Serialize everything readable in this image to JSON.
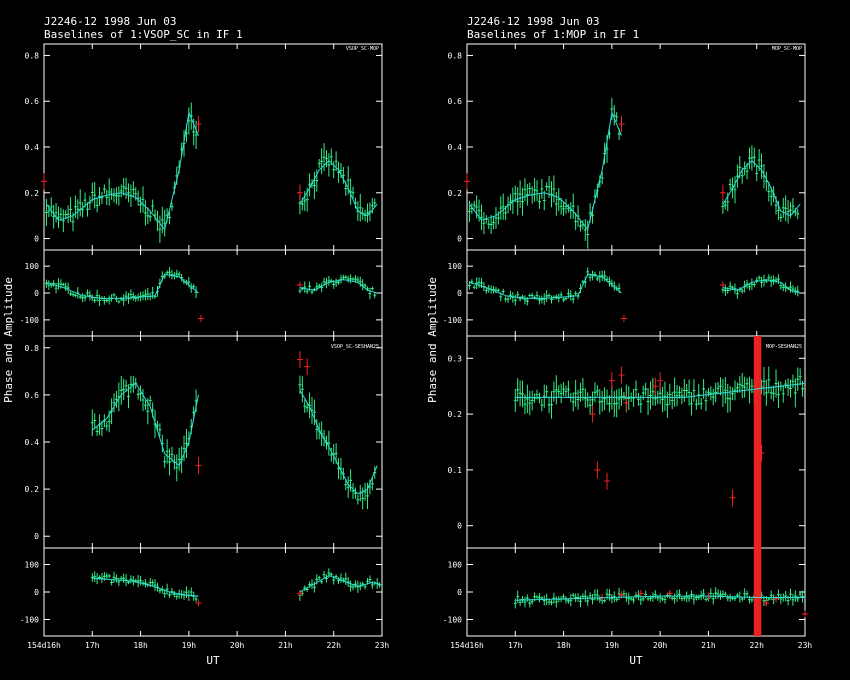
{
  "colors": {
    "background": "#000000",
    "axes": "#ffffff",
    "data": "#33ee88",
    "model": "#33dddd",
    "flagged": "#ee2222"
  },
  "shared": {
    "ylabel": "Phase and Amplitude",
    "xlabel": "UT",
    "x_ticks": [
      "154d16h",
      "17h",
      "18h",
      "19h",
      "20h",
      "21h",
      "22h",
      "23h"
    ]
  },
  "panels": [
    {
      "title1": "J2246-12  1998 Jun 03",
      "title2": "Baselines of 1:VSOP_SC in IF 1",
      "subplots": [
        {
          "label": "VSOP_SC-MOP",
          "kind": "amp",
          "yticks": [
            "0",
            "0.2",
            "0.4",
            "0.6",
            "0.8"
          ]
        },
        {
          "label": "",
          "kind": "phase",
          "yticks": [
            "-100",
            "0",
            "100"
          ]
        },
        {
          "label": "VSOP_SC-SESHAN25",
          "kind": "amp",
          "yticks": [
            "0",
            "0.2",
            "0.4",
            "0.6",
            "0.8"
          ]
        },
        {
          "label": "",
          "kind": "phase",
          "yticks": [
            "-100",
            "0",
            "100"
          ]
        }
      ]
    },
    {
      "title1": "J2246-12  1998 Jun 03",
      "title2": "Baselines of 1:MOP in IF 1",
      "subplots": [
        {
          "label": "MOP_SC-MOP",
          "kind": "amp",
          "yticks": [
            "0",
            "0.2",
            "0.4",
            "0.6",
            "0.8"
          ]
        },
        {
          "label": "",
          "kind": "phase",
          "yticks": [
            "-100",
            "0",
            "100"
          ]
        },
        {
          "label": "MOP-SESHAN25",
          "kind": "amp",
          "yticks": [
            "0",
            "0.1",
            "0.2",
            "0.3"
          ]
        },
        {
          "label": "",
          "kind": "phase",
          "yticks": [
            "-100",
            "0",
            "100"
          ]
        }
      ]
    }
  ],
  "chart_data": [
    {
      "type": "scatter",
      "title": "Baselines of 1:VSOP_SC in IF 1",
      "baseline": "VSOP_SC-MOP",
      "quantity": "amplitude",
      "xlim": [
        16,
        23
      ],
      "ylim": [
        -0.05,
        0.85
      ],
      "series": [
        {
          "name": "VSOP_SC-MOP",
          "segments": [
            {
              "x": [
                16.05,
                16.3,
                16.6,
                17.0,
                17.3,
                17.6,
                17.9,
                18.2,
                18.5,
                18.8,
                19.0,
                19.2
              ],
              "y": [
                0.15,
                0.08,
                0.1,
                0.17,
                0.19,
                0.2,
                0.18,
                0.12,
                0.04,
                0.3,
                0.55,
                0.45
              ]
            },
            {
              "x": [
                21.3,
                21.5,
                21.7,
                21.9,
                22.1,
                22.3,
                22.5,
                22.7,
                22.9
              ],
              "y": [
                0.15,
                0.22,
                0.3,
                0.34,
                0.3,
                0.22,
                0.12,
                0.1,
                0.15
              ]
            }
          ]
        }
      ],
      "flagged": [
        {
          "x": 16.0,
          "y": 0.25
        },
        {
          "x": 19.2,
          "y": 0.5
        },
        {
          "x": 21.3,
          "y": 0.2
        }
      ]
    },
    {
      "type": "scatter",
      "baseline": "VSOP_SC-MOP",
      "quantity": "phase",
      "xlim": [
        16,
        23
      ],
      "ylim": [
        -160,
        160
      ],
      "series": [
        {
          "name": "VSOP_SC-MOP",
          "segments": [
            {
              "x": [
                16.05,
                16.4,
                16.8,
                17.2,
                17.6,
                18.0,
                18.3,
                18.5,
                18.8,
                19.2
              ],
              "y": [
                40,
                20,
                -10,
                -20,
                -20,
                -15,
                -10,
                70,
                60,
                0
              ]
            },
            {
              "x": [
                21.3,
                21.6,
                21.9,
                22.2,
                22.5,
                22.7,
                22.9
              ],
              "y": [
                20,
                10,
                40,
                50,
                40,
                10,
                0
              ]
            }
          ]
        }
      ],
      "flagged": [
        {
          "x": 19.25,
          "y": -95
        },
        {
          "x": 21.3,
          "y": 30
        }
      ]
    },
    {
      "type": "scatter",
      "baseline": "VSOP_SC-SESHAN25",
      "quantity": "amplitude",
      "xlim": [
        16,
        23
      ],
      "ylim": [
        -0.05,
        0.85
      ],
      "series": [
        {
          "name": "VSOP_SC-SESHAN25",
          "segments": [
            {
              "x": [
                17.0,
                17.3,
                17.6,
                17.9,
                18.2,
                18.5,
                18.8,
                19.0,
                19.2
              ],
              "y": [
                0.45,
                0.5,
                0.6,
                0.65,
                0.55,
                0.35,
                0.3,
                0.4,
                0.6
              ]
            },
            {
              "x": [
                21.3,
                21.5,
                21.7,
                21.9,
                22.1,
                22.3,
                22.5,
                22.7,
                22.9
              ],
              "y": [
                0.62,
                0.55,
                0.45,
                0.38,
                0.3,
                0.22,
                0.18,
                0.2,
                0.3
              ]
            }
          ]
        }
      ],
      "flagged": [
        {
          "x": 21.3,
          "y": 0.75
        },
        {
          "x": 21.45,
          "y": 0.72
        },
        {
          "x": 19.2,
          "y": 0.3
        }
      ]
    },
    {
      "type": "scatter",
      "baseline": "VSOP_SC-SESHAN25",
      "quantity": "phase",
      "xlim": [
        16,
        23
      ],
      "ylim": [
        -160,
        160
      ],
      "series": [
        {
          "name": "VSOP_SC-SESHAN25",
          "segments": [
            {
              "x": [
                17.0,
                17.4,
                17.8,
                18.2,
                18.6,
                18.9,
                19.2
              ],
              "y": [
                50,
                45,
                40,
                25,
                0,
                -10,
                -15
              ]
            },
            {
              "x": [
                21.3,
                21.6,
                21.9,
                22.2,
                22.5,
                22.8,
                23.0
              ],
              "y": [
                0,
                30,
                60,
                40,
                20,
                35,
                25
              ]
            }
          ]
        }
      ],
      "flagged": [
        {
          "x": 19.2,
          "y": -40
        },
        {
          "x": 21.3,
          "y": -5
        }
      ]
    },
    {
      "type": "scatter",
      "title": "Baselines of 1:MOP in IF 1",
      "baseline": "MOP_SC-MOP",
      "quantity": "amplitude",
      "xlim": [
        16,
        23
      ],
      "ylim": [
        -0.05,
        0.85
      ],
      "series": [
        {
          "name": "MOP_SC-MOP",
          "segments": [
            {
              "x": [
                16.05,
                16.3,
                16.6,
                17.0,
                17.3,
                17.6,
                17.9,
                18.2,
                18.5,
                18.8,
                19.0,
                19.2
              ],
              "y": [
                0.15,
                0.08,
                0.1,
                0.17,
                0.19,
                0.2,
                0.18,
                0.12,
                0.04,
                0.3,
                0.55,
                0.45
              ]
            },
            {
              "x": [
                21.3,
                21.5,
                21.7,
                21.9,
                22.1,
                22.3,
                22.5,
                22.7,
                22.9
              ],
              "y": [
                0.15,
                0.22,
                0.3,
                0.34,
                0.3,
                0.22,
                0.12,
                0.1,
                0.15
              ]
            }
          ]
        }
      ],
      "flagged": [
        {
          "x": 16.0,
          "y": 0.25
        },
        {
          "x": 19.2,
          "y": 0.5
        },
        {
          "x": 21.3,
          "y": 0.2
        }
      ]
    },
    {
      "type": "scatter",
      "baseline": "MOP_SC-MOP",
      "quantity": "phase",
      "xlim": [
        16,
        23
      ],
      "ylim": [
        -160,
        160
      ],
      "series": [
        {
          "name": "MOP_SC-MOP",
          "segments": [
            {
              "x": [
                16.05,
                16.4,
                16.8,
                17.2,
                17.6,
                18.0,
                18.3,
                18.5,
                18.8,
                19.2
              ],
              "y": [
                40,
                20,
                -10,
                -20,
                -20,
                -15,
                -10,
                70,
                60,
                0
              ]
            },
            {
              "x": [
                21.3,
                21.6,
                21.9,
                22.2,
                22.5,
                22.7,
                22.9
              ],
              "y": [
                20,
                10,
                40,
                50,
                40,
                10,
                0
              ]
            }
          ]
        }
      ],
      "flagged": [
        {
          "x": 19.25,
          "y": -95
        },
        {
          "x": 21.3,
          "y": 30
        }
      ]
    },
    {
      "type": "scatter",
      "baseline": "MOP-SESHAN25",
      "quantity": "amplitude",
      "xlim": [
        16,
        23
      ],
      "ylim": [
        -0.04,
        0.34
      ],
      "series": [
        {
          "name": "MOP-SESHAN25",
          "segments": [
            {
              "x": [
                17.0,
                17.5,
                18.0,
                18.5,
                19.0,
                19.5,
                20.0,
                20.5,
                21.0,
                21.5,
                22.0,
                22.5,
                23.0
              ],
              "y": [
                0.23,
                0.23,
                0.23,
                0.23,
                0.23,
                0.23,
                0.23,
                0.23,
                0.235,
                0.24,
                0.245,
                0.25,
                0.255
              ]
            }
          ]
        }
      ],
      "flagged": [
        {
          "x": 18.6,
          "y": 0.2
        },
        {
          "x": 18.7,
          "y": 0.1
        },
        {
          "x": 18.9,
          "y": 0.08
        },
        {
          "x": 19.0,
          "y": 0.26
        },
        {
          "x": 19.2,
          "y": 0.27
        },
        {
          "x": 19.3,
          "y": 0.22
        },
        {
          "x": 19.9,
          "y": 0.25
        },
        {
          "x": 20.0,
          "y": 0.26
        },
        {
          "x": 21.5,
          "y": 0.05
        },
        {
          "x": 22.1,
          "y": 0.13
        }
      ]
    },
    {
      "type": "scatter",
      "baseline": "MOP-SESHAN25",
      "quantity": "phase",
      "xlim": [
        16,
        23
      ],
      "ylim": [
        -160,
        160
      ],
      "series": [
        {
          "name": "MOP-SESHAN25",
          "segments": [
            {
              "x": [
                17.0,
                18.0,
                19.0,
                20.0,
                21.0,
                22.0,
                23.0
              ],
              "y": [
                -30,
                -25,
                -20,
                -15,
                -15,
                -20,
                -20
              ]
            }
          ]
        }
      ],
      "flagged": [
        {
          "x": 18.8,
          "y": -20
        },
        {
          "x": 19.2,
          "y": -10
        },
        {
          "x": 19.6,
          "y": -5
        },
        {
          "x": 20.2,
          "y": -5
        },
        {
          "x": 21.0,
          "y": -15
        },
        {
          "x": 22.2,
          "y": -40
        },
        {
          "x": 22.4,
          "y": -25
        },
        {
          "x": 23.0,
          "y": -80
        }
      ]
    }
  ]
}
